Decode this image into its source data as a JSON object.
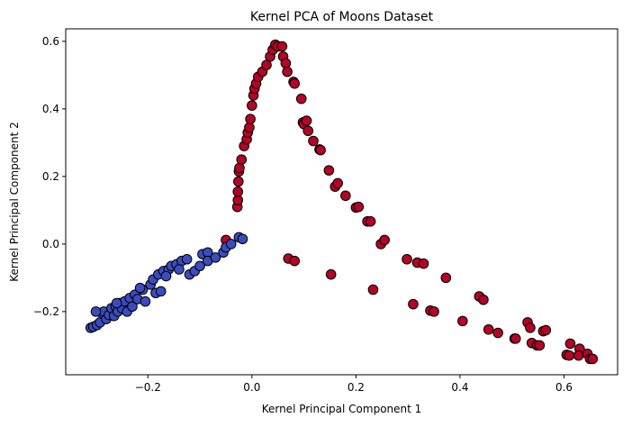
{
  "chart_data": {
    "type": "scatter",
    "title": "Kernel PCA of Moons Dataset",
    "x_label": "Kernel Principal Component 1",
    "y_label": "Kernel Principal Component 2",
    "xlim": [
      -0.358,
      0.703
    ],
    "ylim": [
      -0.387,
      0.637
    ],
    "xticks": [
      {
        "value": -0.2,
        "label": "−0.2"
      },
      {
        "value": 0,
        "label": "0.0"
      },
      0.2,
      0.4,
      0.6
    ],
    "yticks": [
      {
        "value": -0.2,
        "label": "−0.2"
      },
      {
        "value": 0,
        "label": "0.0"
      },
      0.2,
      0.4,
      0.6
    ],
    "series": [
      {
        "color": "#b40426",
        "x": [
          -0.028,
          -0.027,
          -0.027,
          -0.026,
          -0.025,
          -0.024,
          -0.02,
          -0.015,
          -0.01,
          -0.008,
          -0.005,
          -0.003,
          0.0,
          0.003,
          0.005,
          0.008,
          0.012,
          0.02,
          0.028,
          0.035,
          0.04,
          0.045,
          0.05,
          0.058,
          0.06,
          0.065,
          0.068,
          0.08,
          0.082,
          0.095,
          0.098,
          0.1,
          0.105,
          0.108,
          0.118,
          0.13,
          0.132,
          0.148,
          0.16,
          0.165,
          0.18,
          0.2,
          0.205,
          0.222,
          0.228,
          0.248,
          0.255,
          0.298,
          0.318,
          0.33,
          0.373,
          0.437,
          0.445,
          0.53,
          0.535,
          0.56,
          0.565,
          0.612,
          0.63,
          -0.05,
          0.07,
          0.082,
          0.152,
          0.233,
          0.31,
          0.343,
          0.35,
          0.405,
          0.455,
          0.473,
          0.505,
          0.507,
          0.538,
          0.548,
          0.553,
          0.605,
          0.61,
          0.628,
          0.645,
          0.65,
          0.655
        ],
        "y": [
          0.11,
          0.13,
          0.155,
          0.185,
          0.215,
          0.225,
          0.25,
          0.29,
          0.31,
          0.33,
          0.345,
          0.37,
          0.41,
          0.44,
          0.46,
          0.475,
          0.495,
          0.51,
          0.53,
          0.555,
          0.575,
          0.59,
          0.585,
          0.585,
          0.555,
          0.535,
          0.51,
          0.48,
          0.475,
          0.43,
          0.36,
          0.355,
          0.365,
          0.335,
          0.305,
          0.28,
          0.278,
          0.218,
          0.17,
          0.18,
          0.143,
          0.108,
          0.11,
          0.067,
          0.067,
          0.0,
          0.012,
          -0.045,
          -0.055,
          -0.058,
          -0.1,
          -0.155,
          -0.165,
          -0.232,
          -0.248,
          -0.258,
          -0.255,
          -0.295,
          -0.31,
          0.012,
          -0.043,
          -0.05,
          -0.09,
          -0.135,
          -0.178,
          -0.197,
          -0.2,
          -0.228,
          -0.253,
          -0.263,
          -0.28,
          -0.28,
          -0.293,
          -0.3,
          -0.3,
          -0.328,
          -0.33,
          -0.33,
          -0.325,
          -0.34,
          -0.34
        ]
      },
      {
        "color": "#3b4cc0",
        "x": [
          -0.31,
          -0.305,
          -0.298,
          -0.292,
          -0.288,
          -0.285,
          -0.28,
          -0.275,
          -0.27,
          -0.265,
          -0.262,
          -0.258,
          -0.255,
          -0.25,
          -0.245,
          -0.24,
          -0.235,
          -0.23,
          -0.225,
          -0.22,
          -0.21,
          -0.205,
          -0.195,
          -0.19,
          -0.185,
          -0.18,
          -0.175,
          -0.17,
          -0.16,
          -0.155,
          -0.145,
          -0.135,
          -0.125,
          -0.12,
          -0.11,
          -0.1,
          -0.095,
          -0.085,
          -0.085,
          -0.07,
          -0.055,
          -0.05,
          -0.04,
          -0.025,
          -0.018,
          -0.3,
          -0.26,
          -0.215,
          -0.165,
          -0.14
        ],
        "y": [
          -0.248,
          -0.245,
          -0.24,
          -0.232,
          -0.205,
          -0.2,
          -0.222,
          -0.21,
          -0.19,
          -0.213,
          -0.185,
          -0.2,
          -0.175,
          -0.19,
          -0.17,
          -0.2,
          -0.16,
          -0.185,
          -0.15,
          -0.163,
          -0.135,
          -0.17,
          -0.12,
          -0.105,
          -0.145,
          -0.09,
          -0.14,
          -0.08,
          -0.075,
          -0.065,
          -0.06,
          -0.05,
          -0.045,
          -0.09,
          -0.08,
          -0.065,
          -0.03,
          -0.025,
          -0.05,
          -0.04,
          -0.025,
          -0.01,
          0.0,
          0.02,
          0.015,
          -0.2,
          -0.175,
          -0.13,
          -0.095,
          -0.075
        ]
      }
    ]
  }
}
